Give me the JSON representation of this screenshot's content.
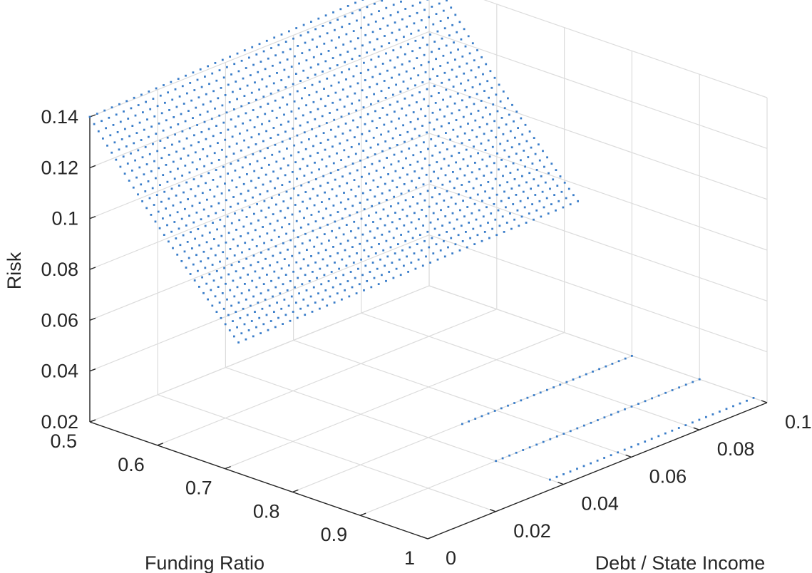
{
  "chart_data": {
    "type": "scatter",
    "title": "",
    "xlabel": "Funding Ratio",
    "ylabel": "Debt / State Income",
    "zlabel": "Risk",
    "xlim": [
      0.5,
      1
    ],
    "ylim": [
      0,
      0.1
    ],
    "zlim": [
      0.02,
      0.14
    ],
    "xticks": [
      "0.5",
      "0.6",
      "0.7",
      "0.8",
      "0.9",
      "1"
    ],
    "yticks": [
      "0",
      "0.02",
      "0.04",
      "0.06",
      "0.08",
      "0.1"
    ],
    "zticks": [
      "0.02",
      "0.04",
      "0.06",
      "0.08",
      "0.1",
      "0.12",
      "0.14"
    ],
    "grid": true,
    "marker_color": "#3a7dc9",
    "series": [
      {
        "surface": true,
        "x_start": 0.5,
        "x_end": 0.72,
        "x_steps": 34,
        "y_start": 0.0,
        "y_end": 0.1,
        "y_steps": 46,
        "z_at_corners": {
          "x0.5_y0": 0.14,
          "x0.5_y0.1": 0.1438,
          "x0.72_y0": 0.0715,
          "x0.72_y0.1": 0.0735
        },
        "note_shape": "z decreases with funding ratio, nearly flat along debt axis"
      },
      {
        "x": 0.8,
        "y_start": 0.05,
        "y_end": 0.1,
        "y_steps": 26,
        "z": 0.02
      },
      {
        "x": 0.9,
        "y_start": 0.04,
        "y_end": 0.1,
        "y_steps": 30,
        "z": 0.02
      },
      {
        "x": 0.98,
        "y_start": 0.04,
        "y_end": 0.1,
        "y_steps": 30,
        "z": 0.02
      }
    ]
  }
}
